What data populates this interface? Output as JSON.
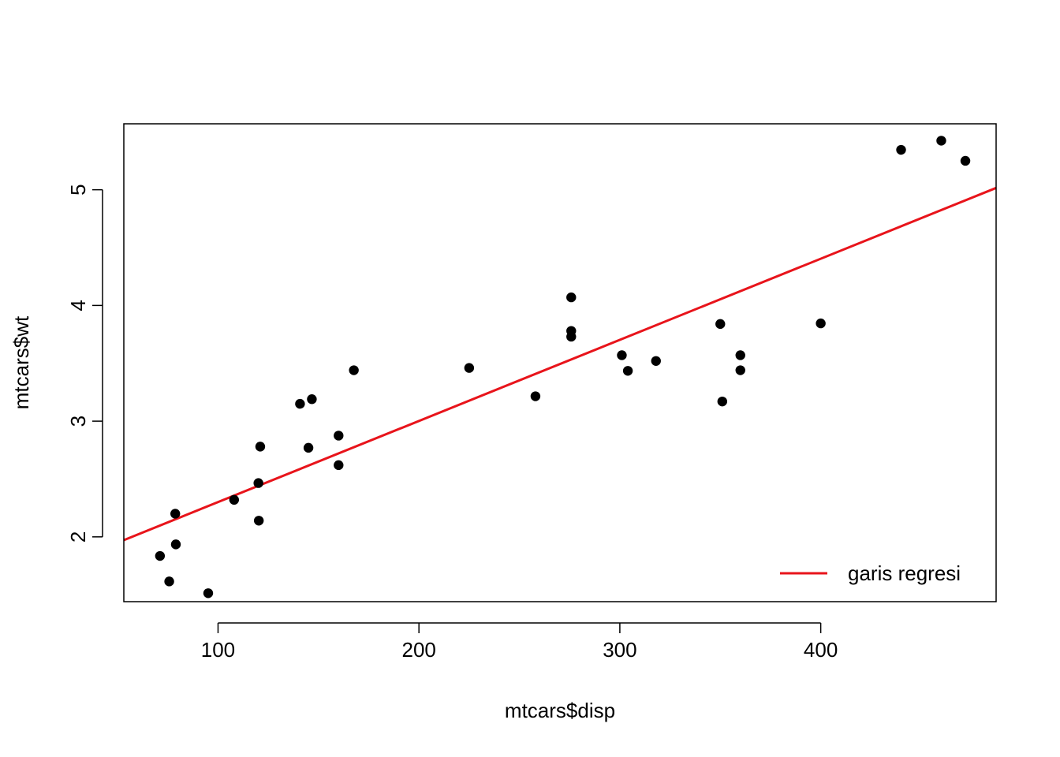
{
  "chart_data": {
    "type": "scatter",
    "title": "",
    "xlabel": "mtcars$disp",
    "ylabel": "mtcars$wt",
    "xlim": [
      53.1,
      487.3
    ],
    "ylim": [
      1.44,
      5.57
    ],
    "xticks": [
      100,
      200,
      300,
      400
    ],
    "yticks": [
      2,
      3,
      4,
      5
    ],
    "grid": false,
    "legend_position": "bottom-right",
    "points_color": "#000000",
    "line_color": "#e8141b",
    "points": [
      {
        "x": 71.1,
        "y": 1.835
      },
      {
        "x": 75.7,
        "y": 1.615
      },
      {
        "x": 78.7,
        "y": 2.2
      },
      {
        "x": 79.0,
        "y": 1.935
      },
      {
        "x": 95.1,
        "y": 1.513
      },
      {
        "x": 108.0,
        "y": 2.32
      },
      {
        "x": 120.1,
        "y": 2.465
      },
      {
        "x": 120.3,
        "y": 2.14
      },
      {
        "x": 121.0,
        "y": 2.78
      },
      {
        "x": 140.8,
        "y": 3.15
      },
      {
        "x": 145.0,
        "y": 2.77
      },
      {
        "x": 146.7,
        "y": 3.19
      },
      {
        "x": 160.0,
        "y": 2.62
      },
      {
        "x": 160.0,
        "y": 2.875
      },
      {
        "x": 167.6,
        "y": 3.44
      },
      {
        "x": 225.0,
        "y": 3.46
      },
      {
        "x": 258.0,
        "y": 3.215
      },
      {
        "x": 275.8,
        "y": 4.07
      },
      {
        "x": 275.8,
        "y": 3.73
      },
      {
        "x": 275.8,
        "y": 3.78
      },
      {
        "x": 301.0,
        "y": 3.57
      },
      {
        "x": 304.0,
        "y": 3.435
      },
      {
        "x": 318.0,
        "y": 3.52
      },
      {
        "x": 350.0,
        "y": 3.84
      },
      {
        "x": 351.0,
        "y": 3.17
      },
      {
        "x": 360.0,
        "y": 3.44
      },
      {
        "x": 360.0,
        "y": 3.57
      },
      {
        "x": 400.0,
        "y": 3.845
      },
      {
        "x": 440.0,
        "y": 5.345
      },
      {
        "x": 460.0,
        "y": 5.424
      },
      {
        "x": 472.0,
        "y": 5.25
      }
    ],
    "regression": {
      "intercept": 1.5998,
      "slope": 0.00701
    },
    "legend": [
      {
        "label": "garis regresi",
        "color": "#e8141b"
      }
    ]
  }
}
